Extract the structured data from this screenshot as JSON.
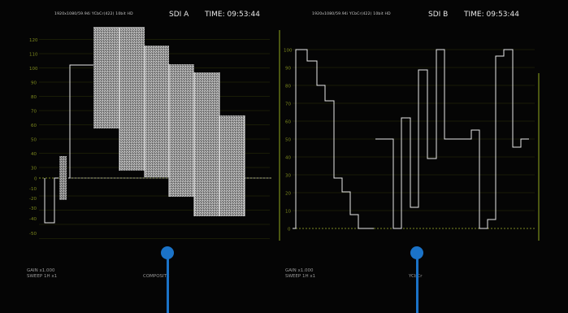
{
  "panels": {
    "a": {
      "format": "1920x1080/59.94i YCbCr(422) 10bit HD",
      "source": "SDI A",
      "time": "TIME: 09:53:44",
      "gain": "GAIN x1.000",
      "sweep": "SWEEP 1H x1",
      "mode": "COMPOSITE",
      "scale_labels": [
        "120",
        "110",
        "100",
        "90",
        "80",
        "70",
        "60",
        "50",
        "40",
        "30",
        "20",
        "10",
        "0",
        "-10",
        "-20",
        "-30",
        "-40",
        "-50"
      ]
    },
    "b": {
      "format": "1920x1080/59.94i YCbCr(422) 10bit HD",
      "source": "SDI B",
      "time": "TIME: 09:53:44",
      "gain": "GAIN x1.000",
      "sweep": "SWEEP 1H x1",
      "mode": "YCbCr",
      "scale_labels": [
        "100",
        "90",
        "80",
        "70",
        "60",
        "50",
        "40",
        "30",
        "20",
        "10",
        "0"
      ]
    }
  },
  "colors": {
    "background": "#000000",
    "graticule": "#6f7a18",
    "trace": "#e8e8e8",
    "marker": "#1b73c8"
  }
}
